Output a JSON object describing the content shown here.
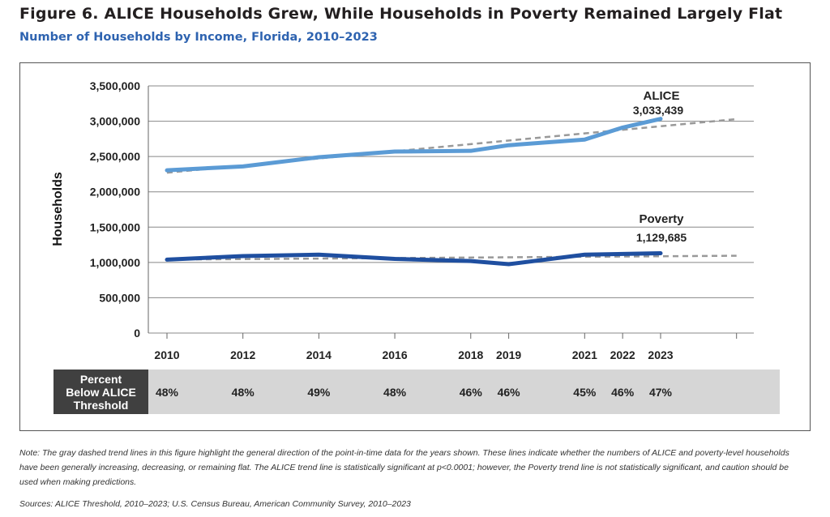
{
  "title": "Figure 6. ALICE Households Grew, While Households in Poverty Remained Largely Flat",
  "subtitle": "Number of Households by Income, Florida, 2010–2023",
  "chart_data": {
    "type": "line",
    "ylabel": "Households",
    "ylim": [
      0,
      3500000
    ],
    "yticks": [
      "0",
      "500,000",
      "1,000,000",
      "1,500,000",
      "2,000,000",
      "2,500,000",
      "3,000,000",
      "3,500,000"
    ],
    "yticks_values": [
      0,
      500000,
      1000000,
      1500000,
      2000000,
      2500000,
      3000000,
      3500000
    ],
    "x": [
      2010,
      2012,
      2014,
      2016,
      2018,
      2019,
      2021,
      2022,
      2023
    ],
    "xlim": [
      2010,
      2025
    ],
    "grid": "horizontal",
    "colors": {
      "alice": "#5b9bd5",
      "poverty": "#1f4fa0",
      "trend": "#999999"
    },
    "series": [
      {
        "name": "ALICE",
        "values": [
          2305000,
          2360000,
          2490000,
          2570000,
          2580000,
          2660000,
          2740000,
          2910000,
          3033439
        ],
        "label": "3,033,439",
        "trend": [
          [
            2010,
            2270000
          ],
          [
            2025,
            3030000
          ]
        ]
      },
      {
        "name": "Poverty",
        "values": [
          1040000,
          1090000,
          1110000,
          1050000,
          1020000,
          975000,
          1110000,
          1120000,
          1129685
        ],
        "label": "1,129,685",
        "trend": [
          [
            2010,
            1040000
          ],
          [
            2025,
            1095000
          ]
        ]
      }
    ]
  },
  "table": {
    "label": "Percent Below ALICE Threshold",
    "label_lines": [
      "Percent",
      "Below ALICE",
      "Threshold"
    ],
    "values": [
      "48%",
      "48%",
      "49%",
      "48%",
      "46%",
      "46%",
      "45%",
      "46%",
      "47%"
    ]
  },
  "note": "Note: The gray dashed trend lines in this figure highlight the general direction of the point-in-time data for the years shown. These lines indicate whether the numbers of ALICE and poverty-level households have been generally increasing, decreasing, or remaining flat. The ALICE trend line is statistically significant at p<0.0001; however, the Poverty trend line is not statistically significant, and caution should be used when making predictions.",
  "sources": "Sources: ALICE Threshold, 2010–2023; U.S. Census Bureau, American Community Survey, 2010–2023"
}
